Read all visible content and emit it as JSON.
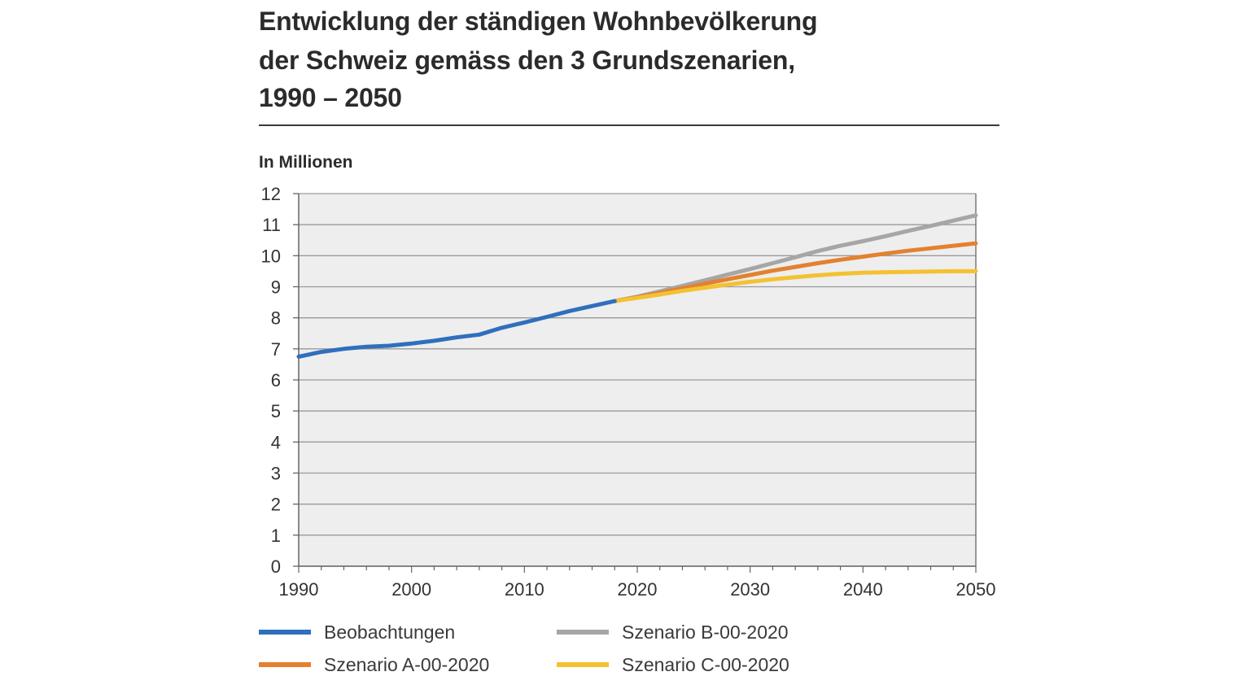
{
  "title_lines": [
    "Entwicklung der ständigen Wohnbevölkerung",
    "der Schweiz gemäss den 3 Grundszenarien,",
    "1990 – 2050"
  ],
  "unit_label": "In Millionen",
  "colors": {
    "plot_bg": "#eeeeee",
    "grid": "#9a9a9a",
    "axis": "#666666",
    "observed": "#2f6fbd",
    "scenario_a": "#e3812f",
    "scenario_b": "#a6a6a6",
    "scenario_c": "#f4c132"
  },
  "legend": [
    {
      "label": "Beobachtungen",
      "color": "#2f6fbd"
    },
    {
      "label": "Szenario B-00-2020",
      "color": "#a6a6a6"
    },
    {
      "label": "Szenario A-00-2020",
      "color": "#e3812f"
    },
    {
      "label": "Szenario C-00-2020",
      "color": "#f4c132"
    }
  ],
  "chart_data": {
    "type": "line",
    "title": "Entwicklung der ständigen Wohnbevölkerung der Schweiz gemäss den 3 Grundszenarien, 1990 – 2050",
    "ylabel": "In Millionen",
    "xlim": [
      1990,
      2050
    ],
    "ylim": [
      0,
      12
    ],
    "xticks": [
      1990,
      2000,
      2010,
      2020,
      2030,
      2040,
      2050
    ],
    "yticks": [
      0,
      1,
      2,
      3,
      4,
      5,
      6,
      7,
      8,
      9,
      10,
      11,
      12
    ],
    "grid": true,
    "legend_position": "bottom",
    "series": [
      {
        "name": "Beobachtungen",
        "color": "#2f6fbd",
        "x": [
          1990,
          1992,
          1994,
          1996,
          1998,
          2000,
          2002,
          2004,
          2006,
          2008,
          2010,
          2012,
          2014,
          2016,
          2018
        ],
        "y": [
          6.75,
          6.9,
          7.0,
          7.07,
          7.1,
          7.17,
          7.26,
          7.37,
          7.46,
          7.68,
          7.85,
          8.03,
          8.22,
          8.38,
          8.54
        ]
      },
      {
        "name": "Szenario B-00-2020",
        "color": "#a6a6a6",
        "x": [
          2018,
          2020,
          2022,
          2024,
          2026,
          2028,
          2030,
          2032,
          2034,
          2036,
          2038,
          2040,
          2042,
          2044,
          2046,
          2048,
          2050
        ],
        "y": [
          8.54,
          8.68,
          8.85,
          9.03,
          9.21,
          9.39,
          9.57,
          9.76,
          9.95,
          10.15,
          10.32,
          10.47,
          10.63,
          10.8,
          10.96,
          11.13,
          11.3
        ]
      },
      {
        "name": "Szenario A-00-2020",
        "color": "#e3812f",
        "x": [
          2018,
          2020,
          2022,
          2024,
          2026,
          2028,
          2030,
          2032,
          2034,
          2036,
          2038,
          2040,
          2042,
          2044,
          2046,
          2048,
          2050
        ],
        "y": [
          8.54,
          8.66,
          8.8,
          8.95,
          9.1,
          9.24,
          9.38,
          9.52,
          9.64,
          9.76,
          9.87,
          9.97,
          10.07,
          10.16,
          10.24,
          10.32,
          10.4
        ]
      },
      {
        "name": "Szenario C-00-2020",
        "color": "#f4c132",
        "x": [
          2018,
          2020,
          2022,
          2024,
          2026,
          2028,
          2030,
          2032,
          2034,
          2036,
          2038,
          2040,
          2042,
          2044,
          2046,
          2048,
          2050
        ],
        "y": [
          8.54,
          8.64,
          8.75,
          8.87,
          8.97,
          9.07,
          9.16,
          9.24,
          9.31,
          9.37,
          9.42,
          9.45,
          9.47,
          9.48,
          9.49,
          9.5,
          9.5
        ]
      }
    ]
  }
}
